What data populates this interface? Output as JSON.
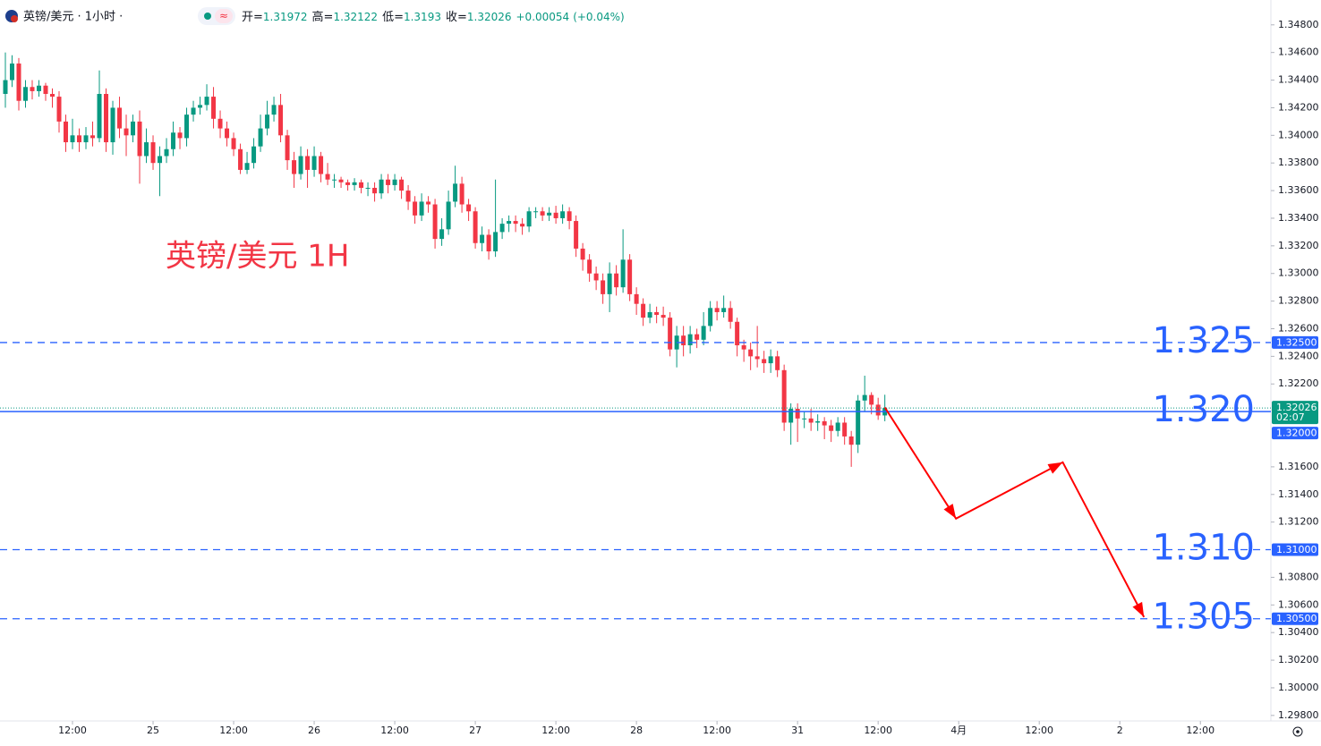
{
  "header": {
    "symbol": "英镑/美元 · 1小时 ·",
    "open_label": "开=",
    "high_label": "高=",
    "low_label": "低=",
    "close_label": "收=",
    "change": "+0.00054",
    "change_pct": "(+0.04%)",
    "countdown": "02:07"
  },
  "chart_data": {
    "type": "candlestick",
    "title": "英镑/美元 1H",
    "up_color": "#089981",
    "down_color": "#f23645",
    "level_color": "#2962ff",
    "arrow_color": "#ff0000",
    "ylim": [
      1.2976,
      1.3498
    ],
    "xlim": [
      -0.8,
      188.5
    ],
    "yticks": [
      {
        "value": 1.348,
        "label": "1.34800"
      },
      {
        "value": 1.346,
        "label": "1.34600"
      },
      {
        "value": 1.344,
        "label": "1.34400"
      },
      {
        "value": 1.342,
        "label": "1.34200"
      },
      {
        "value": 1.34,
        "label": "1.34000"
      },
      {
        "value": 1.338,
        "label": "1.33800"
      },
      {
        "value": 1.336,
        "label": "1.33600"
      },
      {
        "value": 1.334,
        "label": "1.33400"
      },
      {
        "value": 1.332,
        "label": "1.33200"
      },
      {
        "value": 1.33,
        "label": "1.33000"
      },
      {
        "value": 1.328,
        "label": "1.32800"
      },
      {
        "value": 1.326,
        "label": "1.32600"
      },
      {
        "value": 1.324,
        "label": "1.32400"
      },
      {
        "value": 1.322,
        "label": "1.32200"
      },
      {
        "value": 1.316,
        "label": "1.31600"
      },
      {
        "value": 1.314,
        "label": "1.31400"
      },
      {
        "value": 1.312,
        "label": "1.31200"
      },
      {
        "value": 1.308,
        "label": "1.30800"
      },
      {
        "value": 1.306,
        "label": "1.30600"
      },
      {
        "value": 1.304,
        "label": "1.30400"
      },
      {
        "value": 1.302,
        "label": "1.30200"
      },
      {
        "value": 1.3,
        "label": "1.30000"
      },
      {
        "value": 1.298,
        "label": "1.29800"
      }
    ],
    "xticks": [
      {
        "value": 10,
        "label": "12:00"
      },
      {
        "value": 22,
        "label": "25"
      },
      {
        "value": 34,
        "label": "12:00"
      },
      {
        "value": 46,
        "label": "26"
      },
      {
        "value": 58,
        "label": "12:00"
      },
      {
        "value": 70,
        "label": "27"
      },
      {
        "value": 82,
        "label": "12:00"
      },
      {
        "value": 94,
        "label": "28"
      },
      {
        "value": 106,
        "label": "12:00"
      },
      {
        "value": 118,
        "label": "31"
      },
      {
        "value": 130,
        "label": "12:00"
      },
      {
        "value": 142,
        "label": "4月"
      },
      {
        "value": 154,
        "label": "12:00"
      },
      {
        "value": 166,
        "label": "2"
      },
      {
        "value": 178,
        "label": "12:00"
      }
    ],
    "levels": [
      {
        "value": 1.325,
        "label": "1.325",
        "axis_label": "1.32500",
        "style": "dashed"
      },
      {
        "value": 1.32,
        "label": "1.320",
        "axis_label": "1.32000",
        "style": "solid"
      },
      {
        "value": 1.31,
        "label": "1.310",
        "axis_label": "1.31000",
        "style": "dashed"
      },
      {
        "value": 1.305,
        "label": "1.305",
        "axis_label": "1.30500",
        "style": "dashed"
      }
    ],
    "projection": {
      "x": [
        131,
        141.6,
        157.5,
        169.6
      ],
      "y": [
        1.3203,
        1.31225,
        1.31633,
        1.30512
      ]
    },
    "candles": [
      [
        1.343,
        1.346,
        1.342,
        1.344
      ],
      [
        1.344,
        1.3458,
        1.3435,
        1.3452
      ],
      [
        1.3452,
        1.3456,
        1.3418,
        1.3425
      ],
      [
        1.3425,
        1.344,
        1.342,
        1.3435
      ],
      [
        1.3435,
        1.344,
        1.3426,
        1.3432
      ],
      [
        1.3432,
        1.344,
        1.3428,
        1.3436
      ],
      [
        1.3436,
        1.3438,
        1.3425,
        1.343
      ],
      [
        1.343,
        1.3434,
        1.342,
        1.3428
      ],
      [
        1.3428,
        1.3432,
        1.3402,
        1.341
      ],
      [
        1.341,
        1.3415,
        1.3388,
        1.3395
      ],
      [
        1.3395,
        1.3412,
        1.339,
        1.34
      ],
      [
        1.34,
        1.3405,
        1.3388,
        1.3395
      ],
      [
        1.3395,
        1.3406,
        1.339,
        1.34
      ],
      [
        1.34,
        1.341,
        1.3392,
        1.3398
      ],
      [
        1.3398,
        1.3447,
        1.3395,
        1.343
      ],
      [
        1.343,
        1.3434,
        1.3388,
        1.3395
      ],
      [
        1.3395,
        1.3425,
        1.3386,
        1.342
      ],
      [
        1.342,
        1.3428,
        1.3398,
        1.3405
      ],
      [
        1.3405,
        1.3415,
        1.3385,
        1.34
      ],
      [
        1.34,
        1.3415,
        1.3395,
        1.341
      ],
      [
        1.341,
        1.3418,
        1.3365,
        1.3385
      ],
      [
        1.3385,
        1.3405,
        1.338,
        1.3395
      ],
      [
        1.3395,
        1.34,
        1.3375,
        1.338
      ],
      [
        1.338,
        1.3392,
        1.3356,
        1.3385
      ],
      [
        1.3385,
        1.3398,
        1.338,
        1.339
      ],
      [
        1.339,
        1.341,
        1.3385,
        1.3402
      ],
      [
        1.3402,
        1.3406,
        1.339,
        1.3398
      ],
      [
        1.3398,
        1.342,
        1.3392,
        1.3415
      ],
      [
        1.3415,
        1.3425,
        1.341,
        1.342
      ],
      [
        1.342,
        1.3428,
        1.3415,
        1.3422
      ],
      [
        1.3422,
        1.3437,
        1.3418,
        1.3428
      ],
      [
        1.3428,
        1.3435,
        1.3405,
        1.3412
      ],
      [
        1.3412,
        1.3418,
        1.3398,
        1.3405
      ],
      [
        1.3405,
        1.341,
        1.3392,
        1.3398
      ],
      [
        1.3398,
        1.3402,
        1.3385,
        1.339
      ],
      [
        1.339,
        1.3394,
        1.3372,
        1.3375
      ],
      [
        1.3375,
        1.3388,
        1.3372,
        1.338
      ],
      [
        1.338,
        1.3398,
        1.3376,
        1.3392
      ],
      [
        1.3392,
        1.3415,
        1.3388,
        1.3405
      ],
      [
        1.3405,
        1.3425,
        1.34,
        1.3415
      ],
      [
        1.3415,
        1.3428,
        1.341,
        1.3422
      ],
      [
        1.3422,
        1.343,
        1.3395,
        1.34
      ],
      [
        1.34,
        1.3404,
        1.3375,
        1.3382
      ],
      [
        1.3382,
        1.3388,
        1.3362,
        1.3372
      ],
      [
        1.3372,
        1.3392,
        1.3368,
        1.3385
      ],
      [
        1.3385,
        1.339,
        1.3362,
        1.3375
      ],
      [
        1.3375,
        1.3392,
        1.337,
        1.3385
      ],
      [
        1.3385,
        1.3388,
        1.3366,
        1.3372
      ],
      [
        1.3372,
        1.338,
        1.3364,
        1.3368
      ],
      [
        1.3368,
        1.3372,
        1.3362,
        1.3368
      ],
      [
        1.3368,
        1.337,
        1.3362,
        1.3366
      ],
      [
        1.3366,
        1.3368,
        1.336,
        1.3364
      ],
      [
        1.3364,
        1.3369,
        1.336,
        1.3366
      ],
      [
        1.3366,
        1.3368,
        1.3358,
        1.3362
      ],
      [
        1.3362,
        1.3366,
        1.3356,
        1.3362
      ],
      [
        1.3362,
        1.3366,
        1.3352,
        1.3358
      ],
      [
        1.3358,
        1.3372,
        1.3354,
        1.3368
      ],
      [
        1.3368,
        1.3372,
        1.3358,
        1.3364
      ],
      [
        1.3364,
        1.3372,
        1.336,
        1.3368
      ],
      [
        1.3368,
        1.337,
        1.3354,
        1.336
      ],
      [
        1.336,
        1.3364,
        1.3346,
        1.3352
      ],
      [
        1.3352,
        1.3356,
        1.3336,
        1.3342
      ],
      [
        1.3342,
        1.3358,
        1.3338,
        1.3352
      ],
      [
        1.3352,
        1.3356,
        1.3344,
        1.335
      ],
      [
        1.335,
        1.3354,
        1.3318,
        1.3325
      ],
      [
        1.3325,
        1.334,
        1.332,
        1.3332
      ],
      [
        1.3332,
        1.336,
        1.3328,
        1.3352
      ],
      [
        1.3352,
        1.3378,
        1.3348,
        1.3365
      ],
      [
        1.3365,
        1.337,
        1.3344,
        1.335
      ],
      [
        1.335,
        1.3354,
        1.3338,
        1.3345
      ],
      [
        1.3345,
        1.3348,
        1.3318,
        1.3322
      ],
      [
        1.3322,
        1.3334,
        1.3316,
        1.3328
      ],
      [
        1.3328,
        1.3332,
        1.331,
        1.3316
      ],
      [
        1.3316,
        1.3368,
        1.3312,
        1.333
      ],
      [
        1.333,
        1.334,
        1.3325,
        1.3336
      ],
      [
        1.3336,
        1.3342,
        1.333,
        1.3338
      ],
      [
        1.3338,
        1.3342,
        1.333,
        1.3336
      ],
      [
        1.3336,
        1.334,
        1.3328,
        1.3334
      ],
      [
        1.3334,
        1.3348,
        1.333,
        1.3345
      ],
      [
        1.3345,
        1.3348,
        1.334,
        1.3345
      ],
      [
        1.3345,
        1.3348,
        1.3338,
        1.3342
      ],
      [
        1.3342,
        1.3348,
        1.3338,
        1.3344
      ],
      [
        1.3344,
        1.3349,
        1.3336,
        1.334
      ],
      [
        1.334,
        1.335,
        1.3336,
        1.3345
      ],
      [
        1.3345,
        1.3348,
        1.3332,
        1.3338
      ],
      [
        1.3338,
        1.3342,
        1.3312,
        1.3318
      ],
      [
        1.3318,
        1.3322,
        1.3302,
        1.331
      ],
      [
        1.331,
        1.3314,
        1.3294,
        1.33
      ],
      [
        1.33,
        1.3305,
        1.3288,
        1.3295
      ],
      [
        1.3295,
        1.33,
        1.3278,
        1.3285
      ],
      [
        1.3285,
        1.3308,
        1.3272,
        1.33
      ],
      [
        1.33,
        1.3306,
        1.3284,
        1.329
      ],
      [
        1.329,
        1.3332,
        1.3286,
        1.331
      ],
      [
        1.331,
        1.3314,
        1.328,
        1.3285
      ],
      [
        1.3285,
        1.329,
        1.327,
        1.3278
      ],
      [
        1.3278,
        1.3282,
        1.3262,
        1.3268
      ],
      [
        1.3268,
        1.3278,
        1.3264,
        1.3272
      ],
      [
        1.3272,
        1.3276,
        1.3264,
        1.327
      ],
      [
        1.327,
        1.3276,
        1.3262,
        1.3268
      ],
      [
        1.3268,
        1.3272,
        1.324,
        1.3245
      ],
      [
        1.3245,
        1.3262,
        1.3232,
        1.3255
      ],
      [
        1.3255,
        1.3262,
        1.324,
        1.3248
      ],
      [
        1.3248,
        1.3262,
        1.3242,
        1.3256
      ],
      [
        1.3256,
        1.326,
        1.3246,
        1.3252
      ],
      [
        1.3252,
        1.3272,
        1.3248,
        1.3262
      ],
      [
        1.3262,
        1.328,
        1.3258,
        1.3275
      ],
      [
        1.3275,
        1.328,
        1.3266,
        1.3272
      ],
      [
        1.3272,
        1.3284,
        1.3268,
        1.3275
      ],
      [
        1.3275,
        1.328,
        1.326,
        1.3265
      ],
      [
        1.3265,
        1.3268,
        1.324,
        1.3248
      ],
      [
        1.3248,
        1.3252,
        1.3236,
        1.3245
      ],
      [
        1.3245,
        1.325,
        1.323,
        1.324
      ],
      [
        1.324,
        1.3262,
        1.3232,
        1.3238
      ],
      [
        1.3238,
        1.3244,
        1.3228,
        1.3235
      ],
      [
        1.3235,
        1.3245,
        1.3228,
        1.324
      ],
      [
        1.324,
        1.3244,
        1.3225,
        1.323
      ],
      [
        1.323,
        1.3234,
        1.3186,
        1.3192
      ],
      [
        1.3192,
        1.3206,
        1.3176,
        1.3202
      ],
      [
        1.3202,
        1.3206,
        1.3178,
        1.3195
      ],
      [
        1.3195,
        1.32,
        1.3188,
        1.3195
      ],
      [
        1.3195,
        1.3202,
        1.3186,
        1.3192
      ],
      [
        1.3192,
        1.3198,
        1.3186,
        1.3193
      ],
      [
        1.3193,
        1.3196,
        1.318,
        1.319
      ],
      [
        1.319,
        1.3194,
        1.3178,
        1.3186
      ],
      [
        1.3186,
        1.3196,
        1.3182,
        1.3192
      ],
      [
        1.3192,
        1.3196,
        1.3176,
        1.3182
      ],
      [
        1.3182,
        1.3186,
        1.316,
        1.3176
      ],
      [
        1.3176,
        1.3212,
        1.317,
        1.3208
      ],
      [
        1.3208,
        1.3226,
        1.32,
        1.3212
      ],
      [
        1.3212,
        1.3214,
        1.3198,
        1.3205
      ],
      [
        1.3205,
        1.321,
        1.3194,
        1.31972
      ],
      [
        1.31972,
        1.32122,
        1.3193,
        1.32026
      ]
    ]
  }
}
